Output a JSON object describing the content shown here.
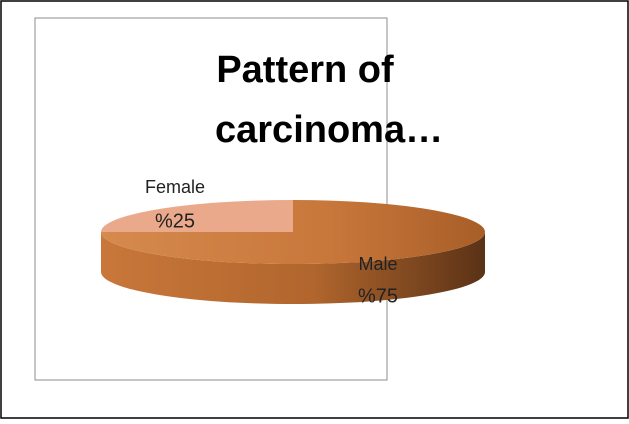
{
  "chart_data": {
    "type": "pie3d",
    "title": "Pattern of carcinoma…",
    "categories": [
      "Male",
      "Female"
    ],
    "values": [
      75,
      25
    ],
    "value_labels": [
      "%75",
      "%25"
    ],
    "colors": [
      "#c8773a",
      "#eaa98b"
    ]
  }
}
